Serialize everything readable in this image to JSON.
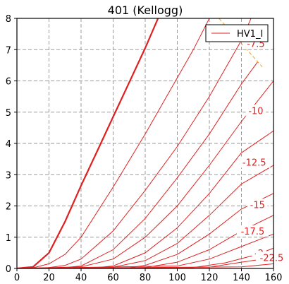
{
  "chart_data": {
    "type": "line",
    "title": "401 (Kellogg)",
    "xlabel": "",
    "ylabel": "",
    "xlim": [
      0,
      160
    ],
    "ylim": [
      0,
      8
    ],
    "xticks": [
      0,
      20,
      40,
      60,
      80,
      100,
      120,
      140,
      160
    ],
    "yticks": [
      0,
      1,
      2,
      3,
      4,
      5,
      6,
      7,
      8
    ],
    "grid": true,
    "legend": {
      "placement": "top-right",
      "entries": [
        "HV1_I"
      ]
    },
    "colors": {
      "curves": "#e02020",
      "limit": "#f0a020",
      "grid": "#9a9a9a"
    },
    "series": [
      {
        "name": "HV1_I",
        "label": "",
        "bold": true,
        "x": [
          0,
          4,
          10,
          20,
          30,
          40,
          50,
          60,
          70,
          80,
          88
        ],
        "y": [
          0,
          0.02,
          0.05,
          0.5,
          1.5,
          2.65,
          3.75,
          4.85,
          5.95,
          7.05,
          8.0
        ]
      },
      {
        "name": "",
        "label": "",
        "x": [
          0,
          10,
          20,
          30,
          40,
          60,
          80,
          100,
          110,
          120
        ],
        "y": [
          0,
          0.02,
          0.15,
          0.45,
          1.0,
          2.6,
          4.3,
          6.1,
          7.0,
          8.0
        ]
      },
      {
        "name": "",
        "label": "-7.5",
        "x": [
          0,
          20,
          30,
          40,
          60,
          80,
          100,
          120,
          140,
          146
        ],
        "y": [
          0,
          0.03,
          0.1,
          0.3,
          1.2,
          2.5,
          3.9,
          5.5,
          7.3,
          8.0
        ]
      },
      {
        "name": "",
        "label": "",
        "x": [
          0,
          30,
          40,
          60,
          80,
          100,
          120,
          140,
          150
        ],
        "y": [
          0,
          0.03,
          0.08,
          0.6,
          1.6,
          2.9,
          4.3,
          5.9,
          6.6
        ]
      },
      {
        "name": "",
        "label": "-10",
        "x": [
          0,
          40,
          60,
          80,
          100,
          120,
          140,
          160
        ],
        "y": [
          0,
          0.05,
          0.3,
          1.0,
          2.0,
          3.3,
          4.7,
          6.0
        ]
      },
      {
        "name": "",
        "label": "-12.5",
        "x": [
          0,
          50,
          60,
          80,
          100,
          120,
          140,
          160
        ],
        "y": [
          0,
          0.03,
          0.08,
          0.5,
          1.3,
          2.4,
          3.7,
          4.4
        ]
      },
      {
        "name": "",
        "label": "-15",
        "x": [
          0,
          60,
          80,
          100,
          120,
          140,
          160
        ],
        "y": [
          0,
          0.04,
          0.25,
          0.8,
          1.7,
          2.7,
          3.3
        ]
      },
      {
        "name": "",
        "label": "-17.5",
        "x": [
          0,
          70,
          80,
          100,
          120,
          140,
          160
        ],
        "y": [
          0,
          0.02,
          0.1,
          0.45,
          1.1,
          1.9,
          2.4
        ]
      },
      {
        "name": "",
        "label": "-2",
        "x": [
          0,
          80,
          100,
          120,
          140,
          160
        ],
        "y": [
          0,
          0.03,
          0.2,
          0.6,
          1.2,
          1.7
        ]
      },
      {
        "name": "",
        "label": "-22.5",
        "x": [
          0,
          100,
          120,
          140,
          160
        ],
        "y": [
          0,
          0.08,
          0.3,
          0.7,
          1.1
        ]
      },
      {
        "name": "",
        "label": "",
        "x": [
          0,
          110,
          130,
          150,
          160
        ],
        "y": [
          0,
          0.03,
          0.18,
          0.45,
          0.65
        ]
      },
      {
        "name": "",
        "label": "",
        "x": [
          0,
          120,
          140,
          160
        ],
        "y": [
          0,
          0.04,
          0.2,
          0.35
        ]
      },
      {
        "name": "",
        "label": "",
        "x": [
          0,
          140,
          160
        ],
        "y": [
          0,
          0.05,
          0.15
        ]
      }
    ],
    "limit_line": {
      "x": [
        126,
        153
      ],
      "y": [
        8.0,
        6.45
      ]
    },
    "contour_labels": [
      {
        "text": "-7.5",
        "x": 149,
        "y": 7.2
      },
      {
        "text": "-10",
        "x": 149,
        "y": 5.05
      },
      {
        "text": "-12.5",
        "x": 148,
        "y": 3.4
      },
      {
        "text": "-15",
        "x": 150,
        "y": 2.05
      },
      {
        "text": "-17.5",
        "x": 147,
        "y": 1.2
      },
      {
        "text": "-2",
        "x": 151,
        "y": 0.5
      },
      {
        "text": "-22.5",
        "x": 160,
        "y": 0.35
      }
    ]
  }
}
